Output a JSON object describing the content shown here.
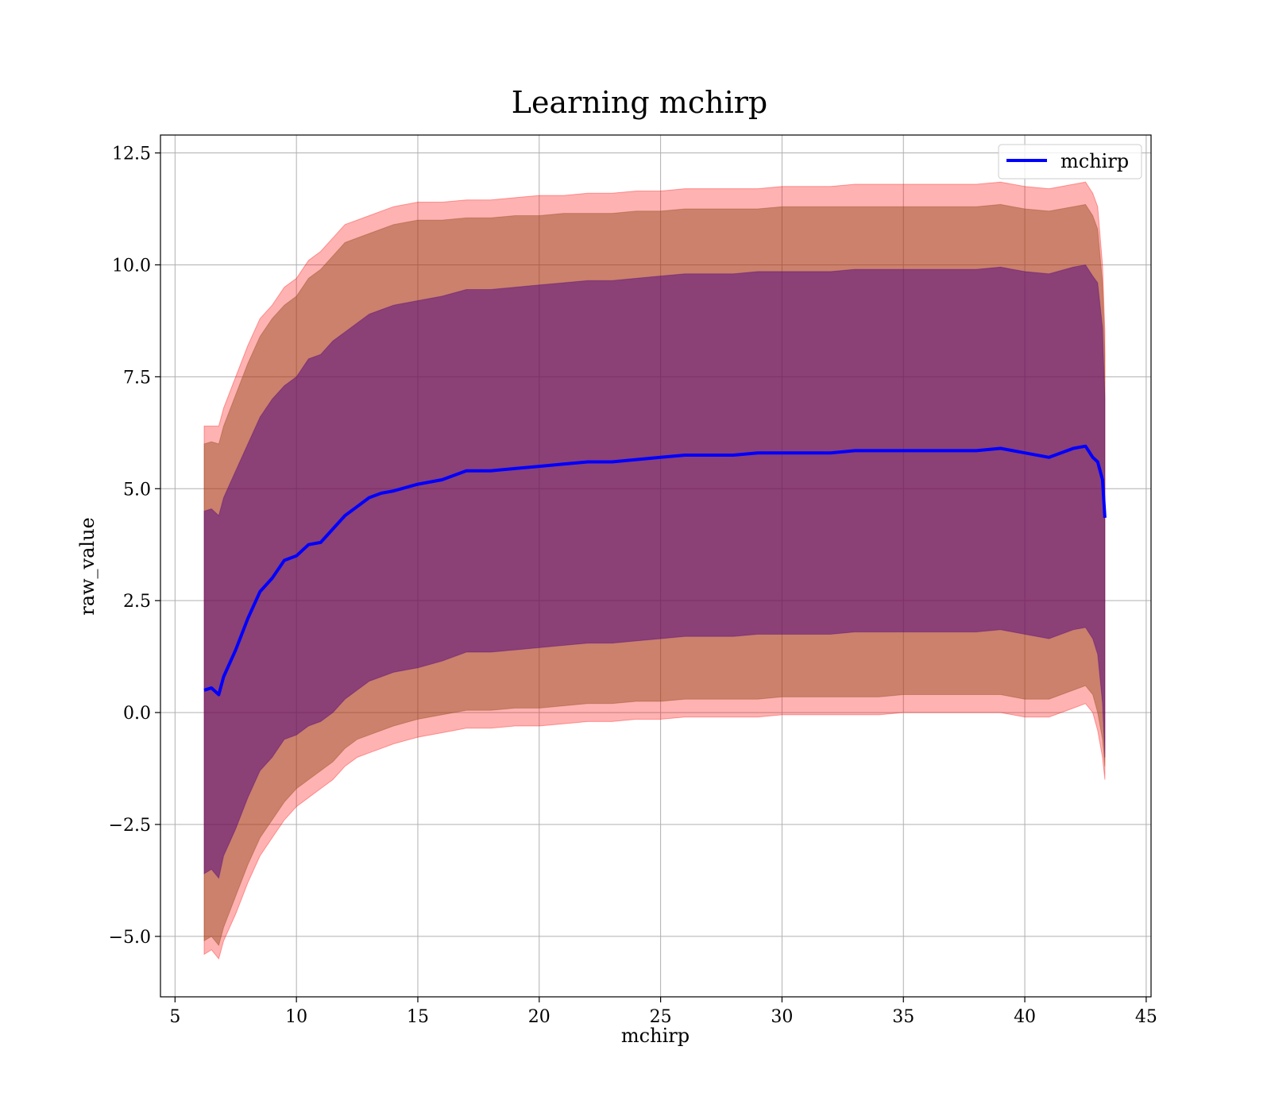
{
  "chart_data": {
    "type": "line",
    "title": "Learning mchirp",
    "xlabel": "mchirp",
    "ylabel": "raw_value",
    "xlim": [
      4.4,
      45.2
    ],
    "ylim": [
      -6.35,
      12.9
    ],
    "xticks": [
      5,
      10,
      15,
      20,
      25,
      30,
      35,
      40,
      45
    ],
    "xtick_labels": [
      "5",
      "10",
      "15",
      "20",
      "25",
      "30",
      "35",
      "40",
      "45"
    ],
    "yticks": [
      -5.0,
      -2.5,
      0.0,
      2.5,
      5.0,
      7.5,
      10.0,
      12.5
    ],
    "ytick_labels": [
      "−5.0",
      "−2.5",
      "0.0",
      "2.5",
      "5.0",
      "7.5",
      "10.0",
      "12.5"
    ],
    "grid": true,
    "legend": {
      "position": "top-right",
      "entries": [
        "mchirp"
      ]
    },
    "colors": {
      "line": "#0000ff",
      "band_outer": "#ff0000",
      "band_mid": "#8b4513",
      "band_inner": "#4b0082",
      "grid": "#b0b0b0"
    },
    "series": [
      {
        "name": "mchirp",
        "x": [
          6.2,
          6.5,
          6.8,
          7.0,
          7.5,
          8.0,
          8.5,
          9.0,
          9.5,
          10.0,
          10.5,
          11.0,
          11.5,
          12.0,
          12.5,
          13.0,
          13.5,
          14.0,
          15.0,
          16.0,
          17.0,
          18.0,
          19.0,
          20.0,
          21.0,
          22.0,
          23.0,
          24.0,
          25.0,
          26.0,
          27.0,
          28.0,
          29.0,
          30.0,
          31.0,
          32.0,
          33.0,
          34.0,
          35.0,
          36.0,
          37.0,
          38.0,
          39.0,
          40.0,
          41.0,
          42.0,
          42.5,
          42.8,
          43.0,
          43.2,
          43.3
        ],
        "values": [
          0.5,
          0.55,
          0.4,
          0.8,
          1.4,
          2.1,
          2.7,
          3.0,
          3.4,
          3.5,
          3.75,
          3.8,
          4.1,
          4.4,
          4.6,
          4.8,
          4.9,
          4.95,
          5.1,
          5.2,
          5.4,
          5.4,
          5.45,
          5.5,
          5.55,
          5.6,
          5.6,
          5.65,
          5.7,
          5.75,
          5.75,
          5.75,
          5.8,
          5.8,
          5.8,
          5.8,
          5.85,
          5.85,
          5.85,
          5.85,
          5.85,
          5.85,
          5.9,
          5.8,
          5.7,
          5.9,
          5.95,
          5.7,
          5.6,
          5.2,
          4.35
        ]
      }
    ],
    "bands": [
      {
        "upper": [
          6.4,
          6.4,
          6.4,
          6.8,
          7.5,
          8.2,
          8.8,
          9.1,
          9.5,
          9.7,
          10.1,
          10.3,
          10.6,
          10.9,
          11.0,
          11.1,
          11.2,
          11.3,
          11.4,
          11.4,
          11.45,
          11.45,
          11.5,
          11.55,
          11.55,
          11.6,
          11.6,
          11.65,
          11.65,
          11.7,
          11.7,
          11.7,
          11.7,
          11.75,
          11.75,
          11.75,
          11.8,
          11.8,
          11.8,
          11.8,
          11.8,
          11.8,
          11.85,
          11.75,
          11.7,
          11.8,
          11.85,
          11.6,
          11.3,
          10.0,
          8.5
        ],
        "lower": [
          -5.4,
          -5.3,
          -5.5,
          -5.1,
          -4.5,
          -3.8,
          -3.2,
          -2.8,
          -2.4,
          -2.1,
          -1.9,
          -1.7,
          -1.5,
          -1.2,
          -1.0,
          -0.9,
          -0.8,
          -0.7,
          -0.55,
          -0.45,
          -0.35,
          -0.35,
          -0.3,
          -0.3,
          -0.25,
          -0.2,
          -0.2,
          -0.15,
          -0.15,
          -0.1,
          -0.1,
          -0.1,
          -0.1,
          -0.05,
          -0.05,
          -0.05,
          -0.05,
          -0.05,
          0.0,
          0.0,
          0.0,
          0.0,
          0.0,
          -0.1,
          -0.1,
          0.1,
          0.2,
          0.0,
          -0.4,
          -1.0,
          -1.5
        ]
      },
      {
        "upper": [
          6.0,
          6.05,
          6.0,
          6.4,
          7.1,
          7.8,
          8.4,
          8.8,
          9.1,
          9.3,
          9.7,
          9.9,
          10.2,
          10.5,
          10.6,
          10.7,
          10.8,
          10.9,
          11.0,
          11.0,
          11.05,
          11.05,
          11.1,
          11.1,
          11.15,
          11.15,
          11.15,
          11.2,
          11.2,
          11.25,
          11.25,
          11.25,
          11.25,
          11.3,
          11.3,
          11.3,
          11.3,
          11.3,
          11.3,
          11.3,
          11.3,
          11.3,
          11.35,
          11.25,
          11.2,
          11.3,
          11.35,
          11.1,
          10.8,
          9.6,
          8.0
        ],
        "lower": [
          -5.1,
          -5.0,
          -5.2,
          -4.8,
          -4.1,
          -3.4,
          -2.8,
          -2.4,
          -2.0,
          -1.7,
          -1.5,
          -1.3,
          -1.1,
          -0.8,
          -0.6,
          -0.5,
          -0.4,
          -0.3,
          -0.15,
          -0.05,
          0.05,
          0.05,
          0.1,
          0.1,
          0.15,
          0.2,
          0.2,
          0.25,
          0.25,
          0.3,
          0.3,
          0.3,
          0.3,
          0.35,
          0.35,
          0.35,
          0.35,
          0.35,
          0.4,
          0.4,
          0.4,
          0.4,
          0.4,
          0.3,
          0.3,
          0.5,
          0.6,
          0.4,
          0.0,
          -0.6,
          -1.2
        ]
      },
      {
        "upper": [
          4.5,
          4.55,
          4.4,
          4.8,
          5.4,
          6.0,
          6.6,
          7.0,
          7.3,
          7.5,
          7.9,
          8.0,
          8.3,
          8.5,
          8.7,
          8.9,
          9.0,
          9.1,
          9.2,
          9.3,
          9.45,
          9.45,
          9.5,
          9.55,
          9.6,
          9.65,
          9.65,
          9.7,
          9.75,
          9.8,
          9.8,
          9.8,
          9.85,
          9.85,
          9.85,
          9.85,
          9.9,
          9.9,
          9.9,
          9.9,
          9.9,
          9.9,
          9.95,
          9.85,
          9.8,
          9.95,
          10.0,
          9.75,
          9.6,
          8.6,
          7.0
        ],
        "lower": [
          -3.6,
          -3.5,
          -3.7,
          -3.2,
          -2.6,
          -1.9,
          -1.3,
          -1.0,
          -0.6,
          -0.5,
          -0.3,
          -0.2,
          0.0,
          0.3,
          0.5,
          0.7,
          0.8,
          0.9,
          1.0,
          1.15,
          1.35,
          1.35,
          1.4,
          1.45,
          1.5,
          1.55,
          1.55,
          1.6,
          1.65,
          1.7,
          1.7,
          1.7,
          1.75,
          1.75,
          1.75,
          1.75,
          1.8,
          1.8,
          1.8,
          1.8,
          1.8,
          1.8,
          1.85,
          1.75,
          1.65,
          1.85,
          1.9,
          1.65,
          1.3,
          0.2,
          -1.0
        ]
      }
    ]
  }
}
